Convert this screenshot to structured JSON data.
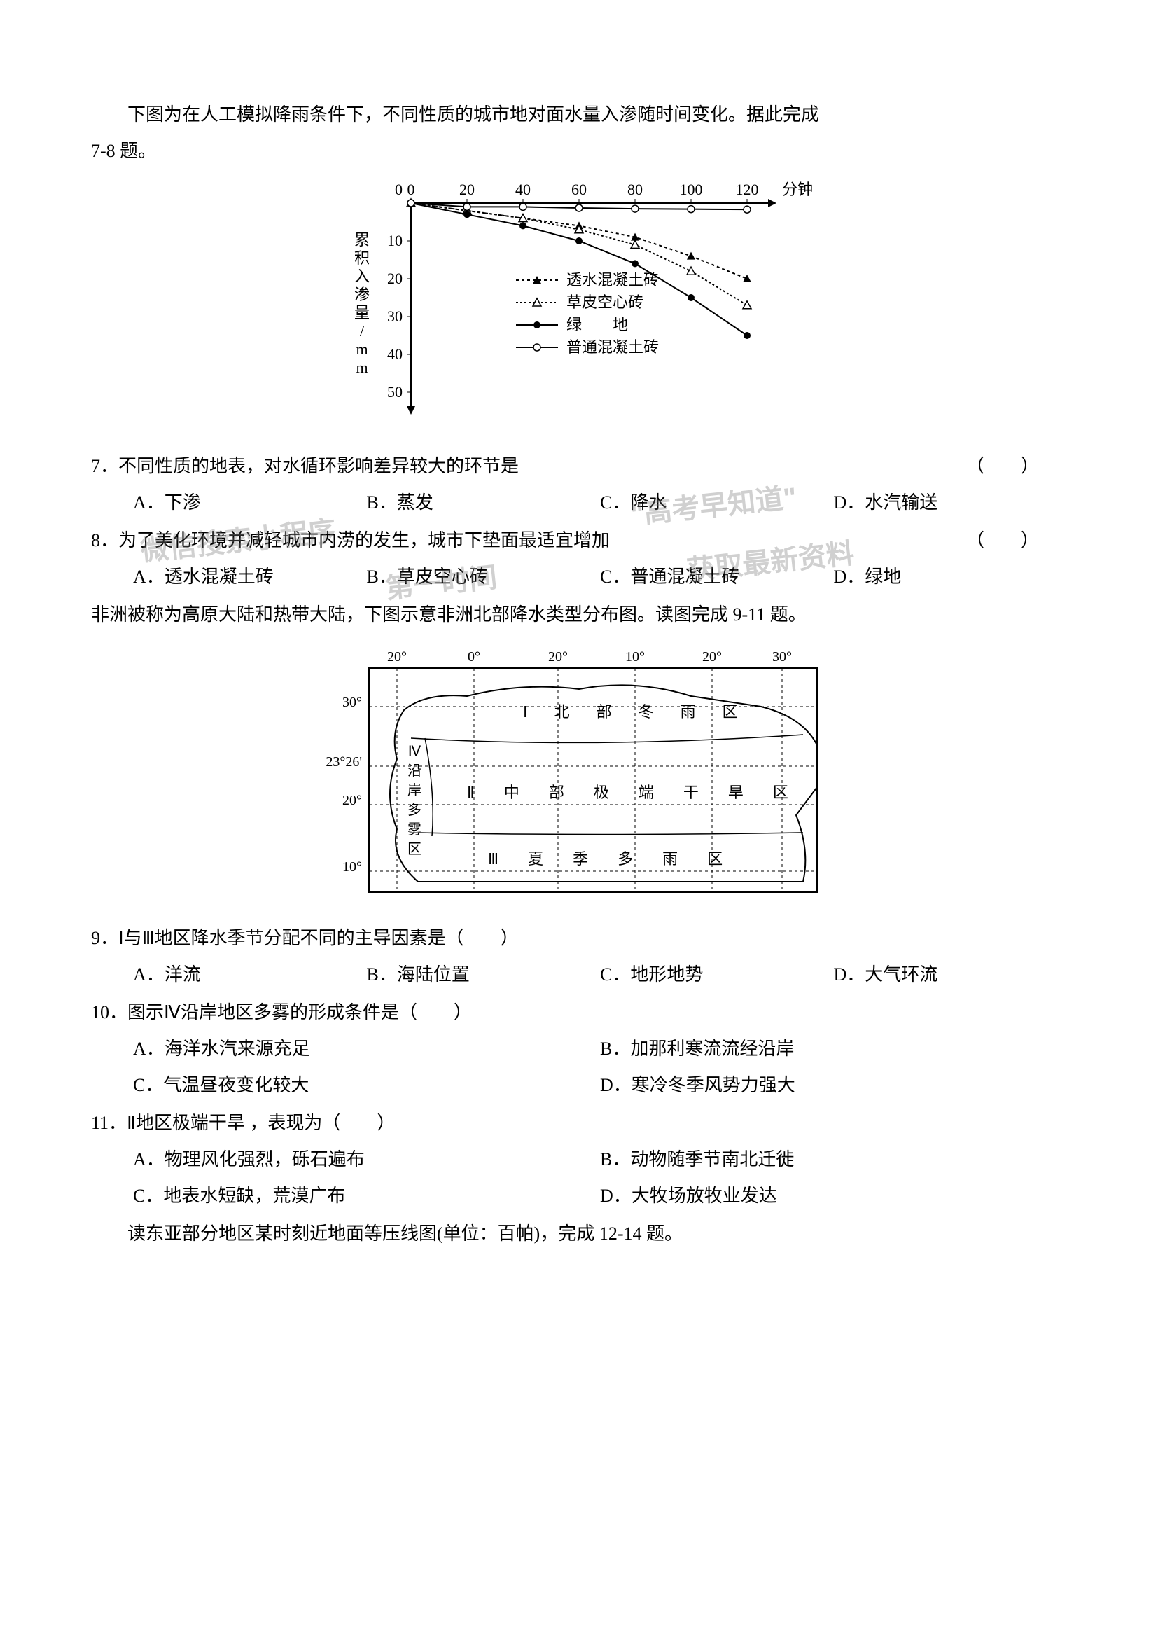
{
  "intro78": {
    "text": "下图为在人工模拟降雨条件下，不同性质的城市地对面水量入渗随时间变化。据此完成",
    "ref": "7-8 题。"
  },
  "chart": {
    "type": "line",
    "x_ticks": [
      0,
      20,
      40,
      60,
      80,
      100,
      120
    ],
    "x_unit": "分钟",
    "y_ticks": [
      0,
      10,
      20,
      30,
      40,
      50
    ],
    "y_label": "累积入渗量/mm",
    "y_label_fontsize": 22,
    "x_label_fontsize": 22,
    "tick_fontsize": 22,
    "legend_fontsize": 22,
    "line_color": "#000000",
    "background_color": "#ffffff",
    "legend_position": "inside-right",
    "series": [
      {
        "name": "透水混凝土砖",
        "marker": "triangle-filled",
        "dash": "4,4",
        "values": [
          [
            0,
            0
          ],
          [
            20,
            2
          ],
          [
            40,
            4
          ],
          [
            60,
            6
          ],
          [
            80,
            9
          ],
          [
            100,
            14
          ],
          [
            120,
            20
          ]
        ]
      },
      {
        "name": "草皮空心砖",
        "marker": "triangle-open",
        "dash": "3,3",
        "values": [
          [
            0,
            0
          ],
          [
            20,
            2
          ],
          [
            40,
            4
          ],
          [
            60,
            7
          ],
          [
            80,
            11
          ],
          [
            100,
            18
          ],
          [
            120,
            27
          ]
        ]
      },
      {
        "name": "绿　　地",
        "marker": "circle-filled",
        "dash": "none",
        "values": [
          [
            0,
            0
          ],
          [
            20,
            3
          ],
          [
            40,
            6
          ],
          [
            60,
            10
          ],
          [
            80,
            16
          ],
          [
            100,
            25
          ],
          [
            120,
            35
          ]
        ]
      },
      {
        "name": "普通混凝土砖",
        "marker": "circle-open",
        "dash": "none",
        "values": [
          [
            0,
            0
          ],
          [
            20,
            1
          ],
          [
            40,
            1
          ],
          [
            60,
            1.3
          ],
          [
            80,
            1.5
          ],
          [
            100,
            1.6
          ],
          [
            120,
            1.7
          ]
        ]
      }
    ]
  },
  "q7": {
    "stem": "7．不同性质的地表，对水循环影响差异较大的环节是",
    "paren": "（　　）",
    "A": "A．下渗",
    "B": "B．蒸发",
    "C": "C．降水",
    "D": "D．水汽输送"
  },
  "q8": {
    "stem": "8．为了美化环境并减轻城市内涝的发生，城市下垫面最适宜增加",
    "paren": "（　　）",
    "A": "A．透水混凝土砖",
    "B": "B．草皮空心砖",
    "C": "C．普通混凝土砖",
    "D": "D．绿地"
  },
  "intro911": {
    "text": "非洲被称为高原大陆和热带大陆，下图示意非洲北部降水类型分布图。读图完成 9-11 题。"
  },
  "map": {
    "type": "map",
    "lon_labels": [
      "20°",
      "0°",
      "20°",
      "10°",
      "20°",
      "30°"
    ],
    "lat_labels": [
      "30°",
      "23°26'",
      "20°",
      "10°"
    ],
    "region_labels": {
      "I": "Ⅰ　北　部　冬　雨　区",
      "II": "Ⅱ　中　部　极　端　干　旱　区",
      "III": "Ⅲ　夏　季　多　雨　区",
      "IV": "Ⅳ 沿 岸 多 雾 区"
    },
    "border_color": "#000000",
    "font_family": "KaiTi"
  },
  "q9": {
    "stem": "9．Ⅰ与Ⅲ地区降水季节分配不同的主导因素是（　　）",
    "A": "A．洋流",
    "B": "B．海陆位置",
    "C": "C．地形地势",
    "D": "D．大气环流"
  },
  "q10": {
    "stem": "10．图示Ⅳ沿岸地区多雾的形成条件是（　　）",
    "A": "A．海洋水汽来源充足",
    "B": "B．加那利寒流流经沿岸",
    "C": "C．气温昼夜变化较大",
    "D": "D．寒冷冬季风势力强大"
  },
  "q11": {
    "stem": "11．Ⅱ地区极端干旱 ，表现为（　　）",
    "A": "A．物理风化强烈，砾石遍布",
    "B": "B．动物随季节南北迁徙",
    "C": "C．地表水短缺，荒漠广布",
    "D": "D．大牧场放牧业发达"
  },
  "intro1214": {
    "text": "读东亚部分地区某时刻近地面等压线图(单位：百帕)，完成 12-14 题。"
  },
  "watermarks": {
    "wm1": "微信搜索小程序",
    "wm2": "\"高考早知道\"",
    "wm3": "第一时间",
    "wm4": "获取最新资料"
  }
}
